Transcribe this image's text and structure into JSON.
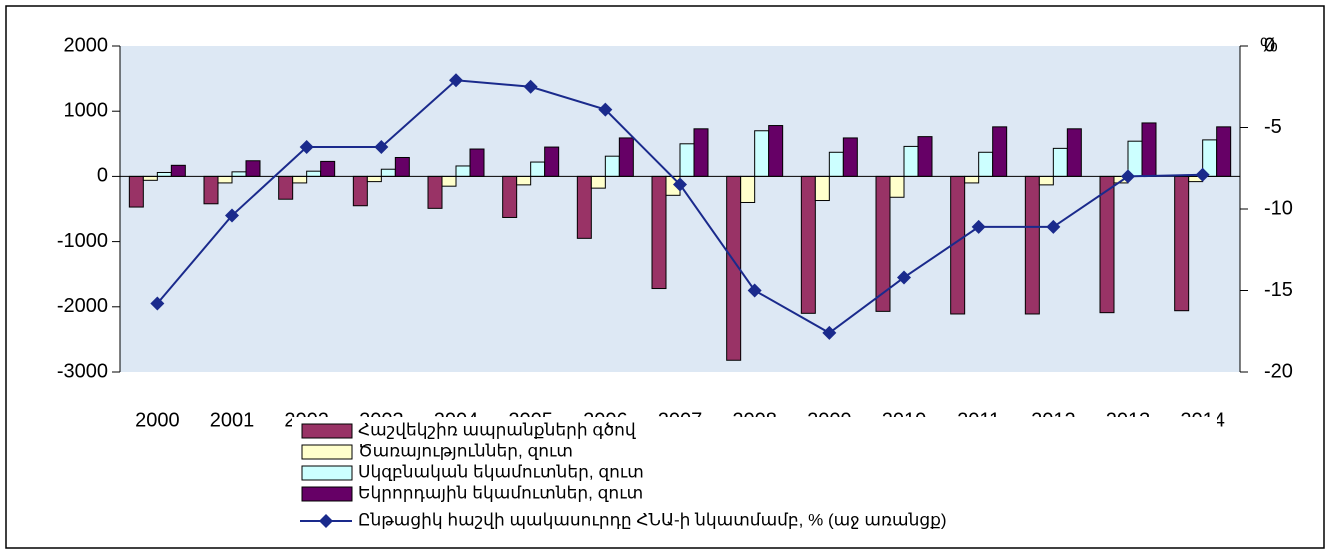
{
  "chart_data": {
    "type": "bar",
    "categories": [
      "2000",
      "2001",
      "2002",
      "2003",
      "2004",
      "2005",
      "2006",
      "2007",
      "2008",
      "2009",
      "2010",
      "2011",
      "2012",
      "2013",
      "2014"
    ],
    "ylim": [
      -3000,
      2000
    ],
    "yticks": [
      -3000,
      -2000,
      -1000,
      0,
      1000,
      2000
    ],
    "y2label": "%",
    "y2lim": [
      -20,
      0
    ],
    "y2ticks": [
      -20,
      -15,
      -10,
      -5,
      0
    ],
    "series": [
      {
        "name": "Հաշվեկշիռ ապրանքների գծով",
        "color": "#993366",
        "type": "bar",
        "values": [
          -470,
          -420,
          -350,
          -450,
          -490,
          -630,
          -950,
          -1720,
          -2820,
          -2100,
          -2070,
          -2110,
          -2110,
          -2090,
          -2060
        ]
      },
      {
        "name": "Ծառայություններ, զուտ",
        "color": "#ffffcc",
        "type": "bar",
        "values": [
          -60,
          -100,
          -100,
          -80,
          -150,
          -130,
          -180,
          -290,
          -400,
          -370,
          -320,
          -100,
          -130,
          -100,
          -80
        ]
      },
      {
        "name": "Սկզբնական եկամուտներ, զուտ",
        "color": "#ccffff",
        "type": "bar",
        "values": [
          60,
          70,
          80,
          110,
          160,
          220,
          310,
          500,
          700,
          370,
          460,
          370,
          430,
          540,
          560
        ]
      },
      {
        "name": "Եկրորդային եկամուտներ, զուտ",
        "color": "#660066",
        "type": "bar",
        "values": [
          170,
          240,
          230,
          290,
          420,
          450,
          590,
          730,
          780,
          590,
          610,
          760,
          730,
          820,
          760
        ]
      },
      {
        "name": "Ընթացիկ հաշվի պակասուրդը ՀՆԱ-ի նկատմամբ, % (աջ առանցք)",
        "color": "#1a2a8c",
        "type": "line",
        "axis": "y2",
        "values": [
          -15.8,
          -10.4,
          -6.2,
          -6.2,
          -2.1,
          -2.5,
          -3.9,
          -8.5,
          -15.0,
          -17.6,
          -14.2,
          -11.1,
          -11.1,
          -8.0,
          -7.9
        ]
      }
    ]
  }
}
